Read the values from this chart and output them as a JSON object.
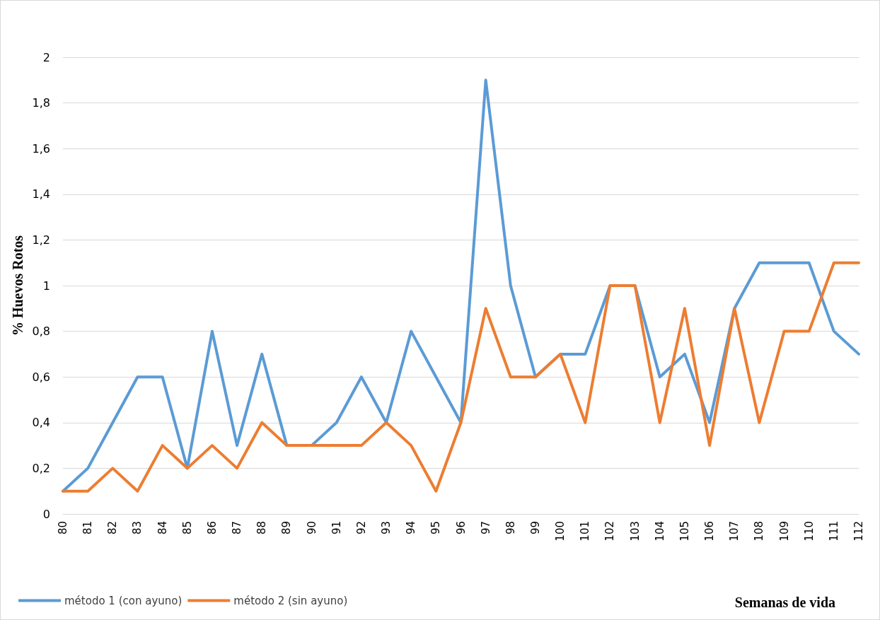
{
  "chart_data": {
    "type": "line",
    "ylabel": "% Huevos Rotos",
    "xlabel": "Semanas de vida",
    "categories": [
      "80",
      "81",
      "82",
      "83",
      "84",
      "85",
      "86",
      "87",
      "88",
      "89",
      "90",
      "91",
      "92",
      "93",
      "94",
      "95",
      "96",
      "97",
      "98",
      "99",
      "100",
      "101",
      "102",
      "103",
      "104",
      "105",
      "106",
      "107",
      "108",
      "109",
      "110",
      "111",
      "112"
    ],
    "series": [
      {
        "name": "método 1 (con ayuno)",
        "color": "#5b9bd5",
        "values": [
          0.1,
          0.2,
          0.4,
          0.6,
          0.6,
          0.2,
          0.8,
          0.3,
          0.7,
          0.3,
          0.3,
          0.4,
          0.6,
          0.4,
          0.8,
          0.6,
          0.4,
          1.9,
          1.0,
          0.6,
          0.7,
          0.7,
          1.0,
          1.0,
          0.6,
          0.7,
          0.4,
          0.9,
          1.1,
          1.1,
          1.1,
          0.8,
          0.7
        ]
      },
      {
        "name": "método 2 (sin ayuno)",
        "color": "#ed7d31",
        "values": [
          0.1,
          0.1,
          0.2,
          0.1,
          0.3,
          0.2,
          0.3,
          0.2,
          0.4,
          0.3,
          0.3,
          0.3,
          0.3,
          0.4,
          0.3,
          0.1,
          0.4,
          0.9,
          0.6,
          0.6,
          0.7,
          0.4,
          1.0,
          1.0,
          0.4,
          0.9,
          0.3,
          0.9,
          0.4,
          0.8,
          0.8,
          1.1,
          1.1
        ]
      }
    ],
    "ylim": [
      0,
      2
    ],
    "yticks": [
      0,
      {
        "value": 0.2,
        "label": "0,2"
      },
      {
        "value": 0.4,
        "label": "0,4"
      },
      {
        "value": 0.6,
        "label": "0,6"
      },
      {
        "value": 0.8,
        "label": "0,8"
      },
      1,
      {
        "value": 1.2,
        "label": "1,2"
      },
      {
        "value": 1.4,
        "label": "1,4"
      },
      {
        "value": 1.6,
        "label": "1,6"
      },
      {
        "value": 1.8,
        "label": "1,8"
      },
      2
    ],
    "grid": "y",
    "legend": "bottom left",
    "marker": "none",
    "line_style": "solid"
  }
}
